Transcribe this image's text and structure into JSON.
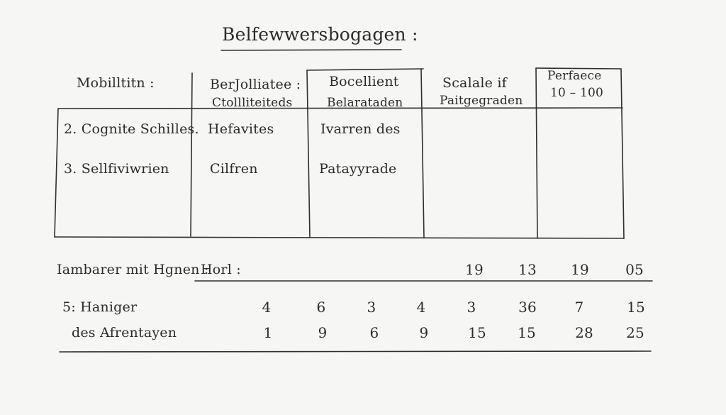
{
  "title": "Belfewwersbogagen :",
  "table": {
    "headers": [
      {
        "line1": "Mobilltitn :",
        "line2": ""
      },
      {
        "line1": "BerJolliatee :",
        "line2": "Ctollliteiteds"
      },
      {
        "line1": "Bocellient",
        "line2": "Belarataden"
      },
      {
        "line1": "Scalale if",
        "line2": "Paitgegraden"
      },
      {
        "line1": "Perfaece",
        "line2": "10 – 100"
      }
    ],
    "rows": [
      [
        "2. Cognite Schilles.",
        "Hefavites",
        "Ivarren  des",
        "",
        ""
      ],
      [
        "3. Sellfiviwrien",
        "Cilfren",
        "Patayyrade",
        "",
        ""
      ]
    ]
  },
  "summary": {
    "label": "Iambarer mit Hgnen :",
    "sublabel": "Horl :",
    "values": [
      "19",
      "13",
      "19",
      "05"
    ]
  },
  "detail": {
    "label1": "5: Haniger",
    "label2": "des Afrentayen",
    "row1": [
      "4",
      "6",
      "3",
      "4",
      "3",
      "36",
      "7",
      "15"
    ],
    "row2": [
      "1",
      "9",
      "6",
      "9",
      "15",
      "15",
      "28",
      "25"
    ]
  }
}
